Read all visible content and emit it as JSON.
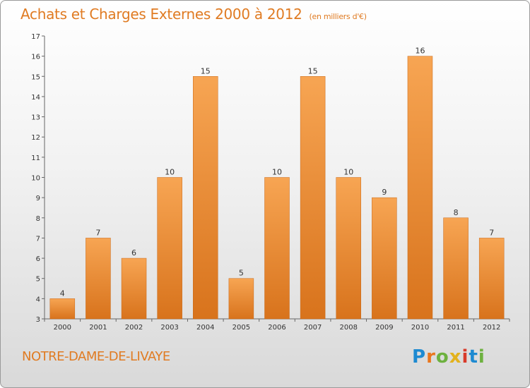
{
  "header": {
    "title": "Achats et Charges Externes 2000 à 2012",
    "unit": "(en milliers d'€)"
  },
  "footer": {
    "place": "NOTRE-DAME-DE-LIVAYE",
    "logo": [
      "P",
      "r",
      "o",
      "x",
      "i",
      "t",
      "i"
    ]
  },
  "colors": {
    "bar_light": "#f7a553",
    "bar_dark": "#d8731c",
    "title": "#e07b22"
  },
  "chart_data": {
    "type": "bar",
    "title": "Achats et Charges Externes 2000 à 2012",
    "subtitle": "(en milliers d'€)",
    "categories": [
      "2000",
      "2001",
      "2002",
      "2003",
      "2004",
      "2005",
      "2006",
      "2007",
      "2008",
      "2009",
      "2010",
      "2011",
      "2012"
    ],
    "values": [
      4,
      7,
      6,
      10,
      15,
      5,
      10,
      15,
      10,
      9,
      16,
      8,
      7
    ],
    "ylim": [
      3,
      17
    ],
    "yticks": [
      3,
      4,
      5,
      6,
      7,
      8,
      9,
      10,
      11,
      12,
      13,
      14,
      15,
      16,
      17
    ],
    "grid": false,
    "xlabel": "",
    "ylabel": ""
  }
}
